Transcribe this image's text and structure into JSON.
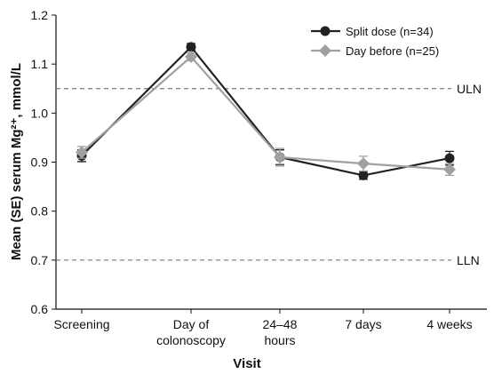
{
  "chart_data": {
    "type": "line",
    "x_label": "Visit",
    "y_label": "Mean (SE) serum Mg²⁺, mmol/L",
    "categories": [
      "Screening",
      "Day of\ncolonoscopy",
      "24–48\nhours",
      "7 days",
      "4 weeks"
    ],
    "series": [
      {
        "name": "Split dose (n=34)",
        "color": "#222222",
        "marker": "circle",
        "values": [
          0.913,
          1.135,
          0.91,
          0.873,
          0.908
        ],
        "errors": [
          0.012,
          0.007,
          0.015,
          0.008,
          0.014
        ]
      },
      {
        "name": "Day before (n=25)",
        "color": "#a0a0a0",
        "marker": "diamond",
        "values": [
          0.92,
          1.115,
          0.91,
          0.897,
          0.885
        ],
        "errors": [
          0.012,
          0.008,
          0.018,
          0.015,
          0.012
        ]
      }
    ],
    "reference_lines": [
      {
        "value": 1.05,
        "label": "ULN"
      },
      {
        "value": 0.7,
        "label": "LLN"
      }
    ],
    "ylim": [
      0.6,
      1.2
    ],
    "yticks": [
      0.6,
      0.7,
      0.8,
      0.9,
      {
        "value": 1,
        "label": "1.0"
      },
      1.1,
      1.2
    ],
    "legend": "upper right"
  }
}
